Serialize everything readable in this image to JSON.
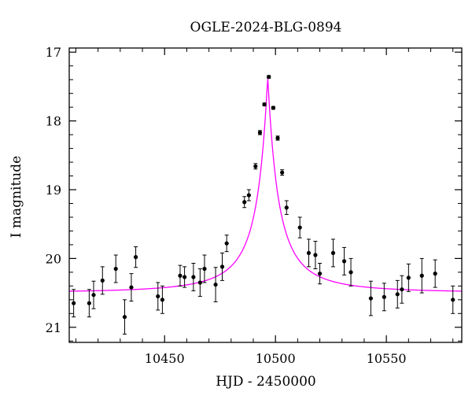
{
  "chart_data": {
    "type": "scatter",
    "title": "OGLE-2024-BLG-0894",
    "xlabel": "HJD - 2450000",
    "ylabel": "I magnitude",
    "xlim": [
      10407,
      10584
    ],
    "ylim": [
      21.22,
      16.94
    ],
    "y_inverted": true,
    "x_ticks": [
      10450,
      10500,
      10550
    ],
    "y_ticks": [
      17,
      18,
      19,
      20,
      21
    ],
    "x_minor_step": 10,
    "y_minor_step": 0.2,
    "grid": false,
    "colors": {
      "points": "#000000",
      "errorbars": "#000000",
      "model": "#ff00ff"
    },
    "model": {
      "t0": 10496.5,
      "mag_peak": 17.35,
      "mag_base": 20.5,
      "width": 8.0
    },
    "series": [
      {
        "kind": "points",
        "x": [
          10409,
          10416,
          10418,
          10422,
          10428,
          10432,
          10435,
          10437,
          10447,
          10449,
          10457,
          10459,
          10463,
          10466,
          10468,
          10473,
          10476,
          10478,
          10486,
          10488,
          10491,
          10493,
          10495,
          10497,
          10499,
          10501,
          10503,
          10505,
          10511,
          10515,
          10518,
          10520,
          10526,
          10531,
          10534,
          10543,
          10549,
          10555,
          10557,
          10560,
          10566,
          10572,
          10580
        ],
        "y": [
          20.65,
          20.65,
          20.53,
          20.32,
          20.15,
          20.85,
          20.42,
          19.98,
          20.55,
          20.6,
          20.25,
          20.27,
          20.27,
          20.35,
          20.15,
          20.38,
          20.12,
          19.78,
          19.18,
          19.08,
          18.66,
          18.17,
          17.76,
          17.36,
          17.81,
          18.25,
          18.75,
          19.26,
          19.55,
          19.92,
          19.95,
          20.22,
          19.92,
          20.04,
          20.2,
          20.58,
          20.56,
          20.52,
          20.45,
          20.28,
          20.25,
          20.22,
          20.6
        ],
        "yerr": [
          0.2,
          0.2,
          0.2,
          0.2,
          0.2,
          0.25,
          0.2,
          0.15,
          0.2,
          0.2,
          0.15,
          0.15,
          0.2,
          0.2,
          0.2,
          0.25,
          0.2,
          0.12,
          0.08,
          0.08,
          0.04,
          0.03,
          0.02,
          0.02,
          0.02,
          0.03,
          0.04,
          0.1,
          0.15,
          0.2,
          0.2,
          0.15,
          0.2,
          0.2,
          0.2,
          0.25,
          0.2,
          0.2,
          0.2,
          0.2,
          0.25,
          0.2,
          0.2
        ]
      }
    ]
  }
}
